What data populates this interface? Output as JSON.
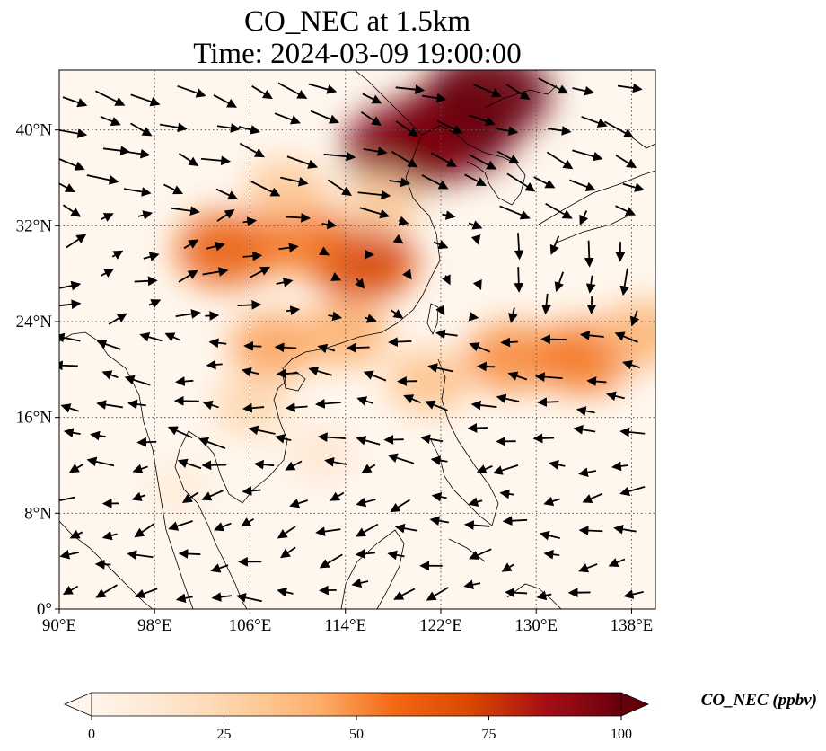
{
  "title_line1": "CO_NEC at 1.5km",
  "title_line2": "Time: 2024-03-09 19:00:00",
  "map": {
    "lon_range": [
      90,
      140
    ],
    "lat_range": [
      0,
      45
    ],
    "lon_ticks": [
      {
        "value": 90,
        "label": "90°E"
      },
      {
        "value": 98,
        "label": "98°E"
      },
      {
        "value": 106,
        "label": "106°E"
      },
      {
        "value": 114,
        "label": "114°E"
      },
      {
        "value": 122,
        "label": "122°E"
      },
      {
        "value": 130,
        "label": "130°E"
      },
      {
        "value": 138,
        "label": "138°E"
      }
    ],
    "lat_ticks": [
      {
        "value": 0,
        "label": "0°"
      },
      {
        "value": 8,
        "label": "8°N"
      },
      {
        "value": 16,
        "label": "16°N"
      },
      {
        "value": 24,
        "label": "24°N"
      },
      {
        "value": 32,
        "label": "32°N"
      },
      {
        "value": 40,
        "label": "40°N"
      }
    ],
    "gridlines": true,
    "field_variable": "CO_NEC",
    "overlay": "wind vectors",
    "plumes": [
      {
        "lon": 123,
        "lat": 40,
        "value": 105
      },
      {
        "lon": 126,
        "lat": 43,
        "value": 100
      },
      {
        "lon": 119,
        "lat": 38.5,
        "value": 95
      },
      {
        "lon": 115.5,
        "lat": 29,
        "value": 72
      },
      {
        "lon": 104,
        "lat": 30,
        "value": 62
      },
      {
        "lon": 110,
        "lat": 31,
        "value": 55
      },
      {
        "lon": 109,
        "lat": 35,
        "value": 32
      },
      {
        "lon": 117,
        "lat": 34,
        "value": 30
      },
      {
        "lon": 108,
        "lat": 22,
        "value": 45
      },
      {
        "lon": 114,
        "lat": 23,
        "value": 42
      },
      {
        "lon": 121,
        "lat": 19,
        "value": 35
      },
      {
        "lon": 128,
        "lat": 21,
        "value": 50
      },
      {
        "lon": 134,
        "lat": 21,
        "value": 55
      },
      {
        "lon": 139,
        "lat": 23,
        "value": 40
      },
      {
        "lon": 106,
        "lat": 17,
        "value": 25
      },
      {
        "lon": 112,
        "lat": 13,
        "value": 14
      },
      {
        "lon": 100,
        "lat": 10,
        "value": 10
      }
    ]
  },
  "colorbar": {
    "label": "CO_NEC (ppbv)",
    "min": 0,
    "max": 100,
    "ticks": [
      "0",
      "25",
      "50",
      "75",
      "100"
    ],
    "colors": [
      "#fff5eb",
      "#fee6ce",
      "#fdd0a2",
      "#fdae6b",
      "#f16913",
      "#d94801",
      "#a50f15",
      "#67000d"
    ],
    "extend": "both"
  }
}
